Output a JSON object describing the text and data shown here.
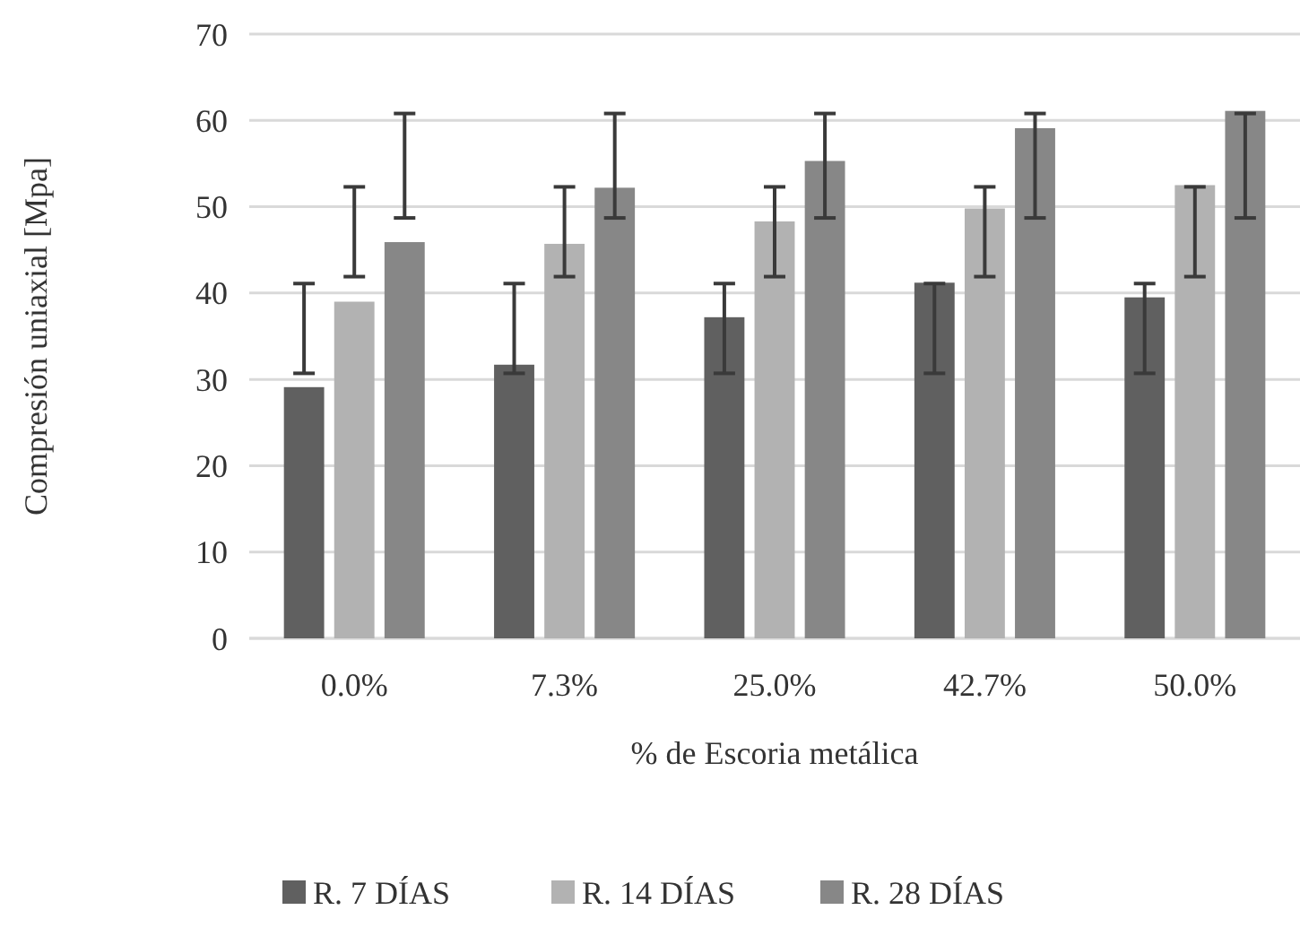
{
  "chart_data": {
    "type": "bar",
    "xlabel": "% de Escoria metálica",
    "ylabel": "Compresión uniaxial [Mpa]",
    "categories": [
      "0.0%",
      "7.3%",
      "25.0%",
      "42.7%",
      "50.0%"
    ],
    "series": [
      {
        "name": "R. 7 DÍAS",
        "color": "#606060",
        "values": [
          29.1,
          31.7,
          37.2,
          41.2,
          39.5
        ],
        "errors": [
          [
            30.7,
            41.1
          ],
          [
            30.7,
            41.1
          ],
          [
            30.7,
            41.1
          ],
          [
            30.7,
            41.1
          ],
          [
            30.7,
            41.1
          ]
        ]
      },
      {
        "name": "R. 14 DÍAS",
        "color": "#b2b2b2",
        "values": [
          39.0,
          45.7,
          48.3,
          49.8,
          52.5
        ],
        "errors": [
          [
            41.9,
            52.3
          ],
          [
            41.9,
            52.3
          ],
          [
            41.9,
            52.3
          ],
          [
            41.9,
            52.3
          ],
          [
            41.9,
            52.3
          ]
        ]
      },
      {
        "name": "R. 28 DÍAS",
        "color": "#878787",
        "values": [
          45.9,
          52.2,
          55.3,
          59.1,
          61.1
        ],
        "errors": [
          [
            48.7,
            60.8
          ],
          [
            48.7,
            60.8
          ],
          [
            48.7,
            60.8
          ],
          [
            48.7,
            60.8
          ],
          [
            48.7,
            60.8
          ]
        ]
      }
    ],
    "ylim": [
      0,
      70
    ],
    "yticks": [
      0,
      10,
      20,
      30,
      40,
      50,
      60,
      70
    ],
    "grid": "y",
    "legend": "bottom"
  }
}
